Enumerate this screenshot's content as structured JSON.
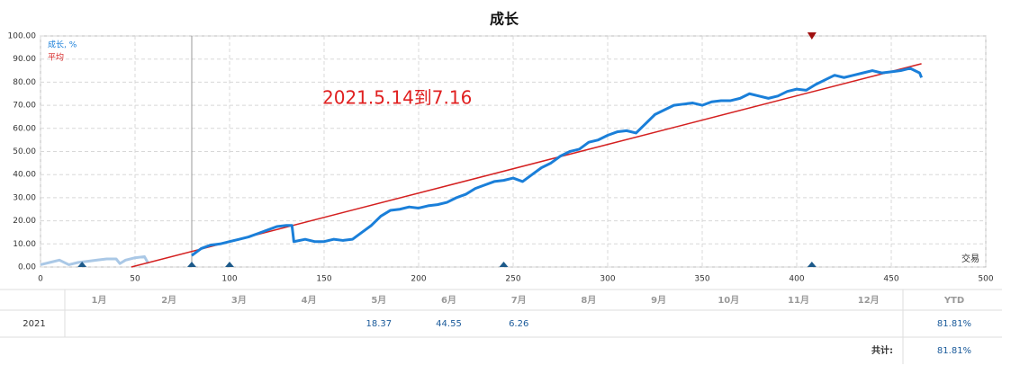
{
  "chart_data": {
    "type": "line",
    "title": "成长",
    "annotation": "2021.5.14到7.16",
    "xlabel": "交易",
    "xlim": [
      0,
      500
    ],
    "xticks": [
      0,
      50,
      100,
      150,
      200,
      250,
      300,
      350,
      400,
      450,
      500
    ],
    "ylim": [
      0,
      100
    ],
    "yticks": [
      {
        "value": 0,
        "label": "0.00"
      },
      {
        "value": 10,
        "label": "10.00"
      },
      {
        "value": 20,
        "label": "20.00"
      },
      {
        "value": 30,
        "label": "30.00"
      },
      {
        "value": 40,
        "label": "40.00"
      },
      {
        "value": 50,
        "label": "50.00"
      },
      {
        "value": 60,
        "label": "60.00"
      },
      {
        "value": 70,
        "label": "70.00"
      },
      {
        "value": 80,
        "label": "80.00"
      },
      {
        "value": 90,
        "label": "90.00"
      },
      {
        "value": 100,
        "label": "100.00"
      }
    ],
    "grid": true,
    "legend": "top-left",
    "series": [
      {
        "name": "成长, %",
        "color": "#1a7fd9",
        "x": [
          80,
          85,
          90,
          95,
          100,
          105,
          110,
          115,
          120,
          125,
          130,
          133,
          134,
          140,
          145,
          150,
          155,
          160,
          165,
          170,
          175,
          180,
          185,
          190,
          195,
          200,
          205,
          210,
          215,
          220,
          225,
          230,
          235,
          240,
          245,
          250,
          255,
          260,
          265,
          270,
          275,
          280,
          285,
          290,
          295,
          300,
          305,
          310,
          315,
          320,
          325,
          330,
          335,
          340,
          345,
          350,
          355,
          360,
          365,
          370,
          375,
          380,
          385,
          390,
          395,
          400,
          405,
          410,
          415,
          420,
          425,
          430,
          435,
          440,
          445,
          450,
          455,
          460,
          465,
          466
        ],
        "values": [
          5,
          8,
          9.5,
          10,
          11,
          12,
          13,
          14.5,
          16,
          17.5,
          18,
          18,
          11,
          12,
          11,
          11,
          12,
          11.5,
          12,
          15,
          18,
          22,
          24.5,
          25,
          26,
          25.5,
          26.5,
          27,
          28,
          30,
          31.5,
          34,
          35.5,
          37,
          37.5,
          38.5,
          37,
          40,
          43,
          45,
          48,
          50,
          51,
          54,
          55,
          57,
          58.5,
          59,
          58,
          62,
          66,
          68,
          70,
          70.5,
          71,
          70,
          71.5,
          72,
          72,
          73,
          75,
          74,
          73,
          74,
          76,
          77,
          76.5,
          79,
          81,
          83,
          82,
          83,
          84,
          85,
          84,
          84.5,
          85,
          86,
          84,
          82
        ]
      },
      {
        "name": "平均",
        "color": "#d42020",
        "x": [
          48,
          466
        ],
        "values": [
          0,
          88
        ]
      },
      {
        "color": "#aac8e6",
        "x": [
          0,
          5,
          10,
          15,
          20,
          25,
          30,
          35,
          40,
          42,
          45,
          50,
          55,
          57
        ],
        "values": [
          1,
          2,
          3,
          1,
          2,
          2.5,
          3,
          3.5,
          3.5,
          1.5,
          3,
          4,
          4.5,
          1.5
        ]
      }
    ],
    "markers": {
      "bottom": [
        22,
        80,
        100,
        245,
        408
      ],
      "top": [
        408
      ],
      "cursor_x": 80
    }
  },
  "table": {
    "months": [
      "1月",
      "2月",
      "3月",
      "4月",
      "5月",
      "6月",
      "7月",
      "8月",
      "9月",
      "10月",
      "11月",
      "12月"
    ],
    "ytd_header": "YTD",
    "rows": [
      {
        "year": "2021",
        "months": [
          null,
          null,
          null,
          null,
          "18.37",
          "44.55",
          "6.26",
          null,
          null,
          null,
          null,
          null
        ],
        "ytd": "81.81%"
      }
    ],
    "footer": {
      "label": "共计:",
      "value": "81.81%"
    }
  }
}
